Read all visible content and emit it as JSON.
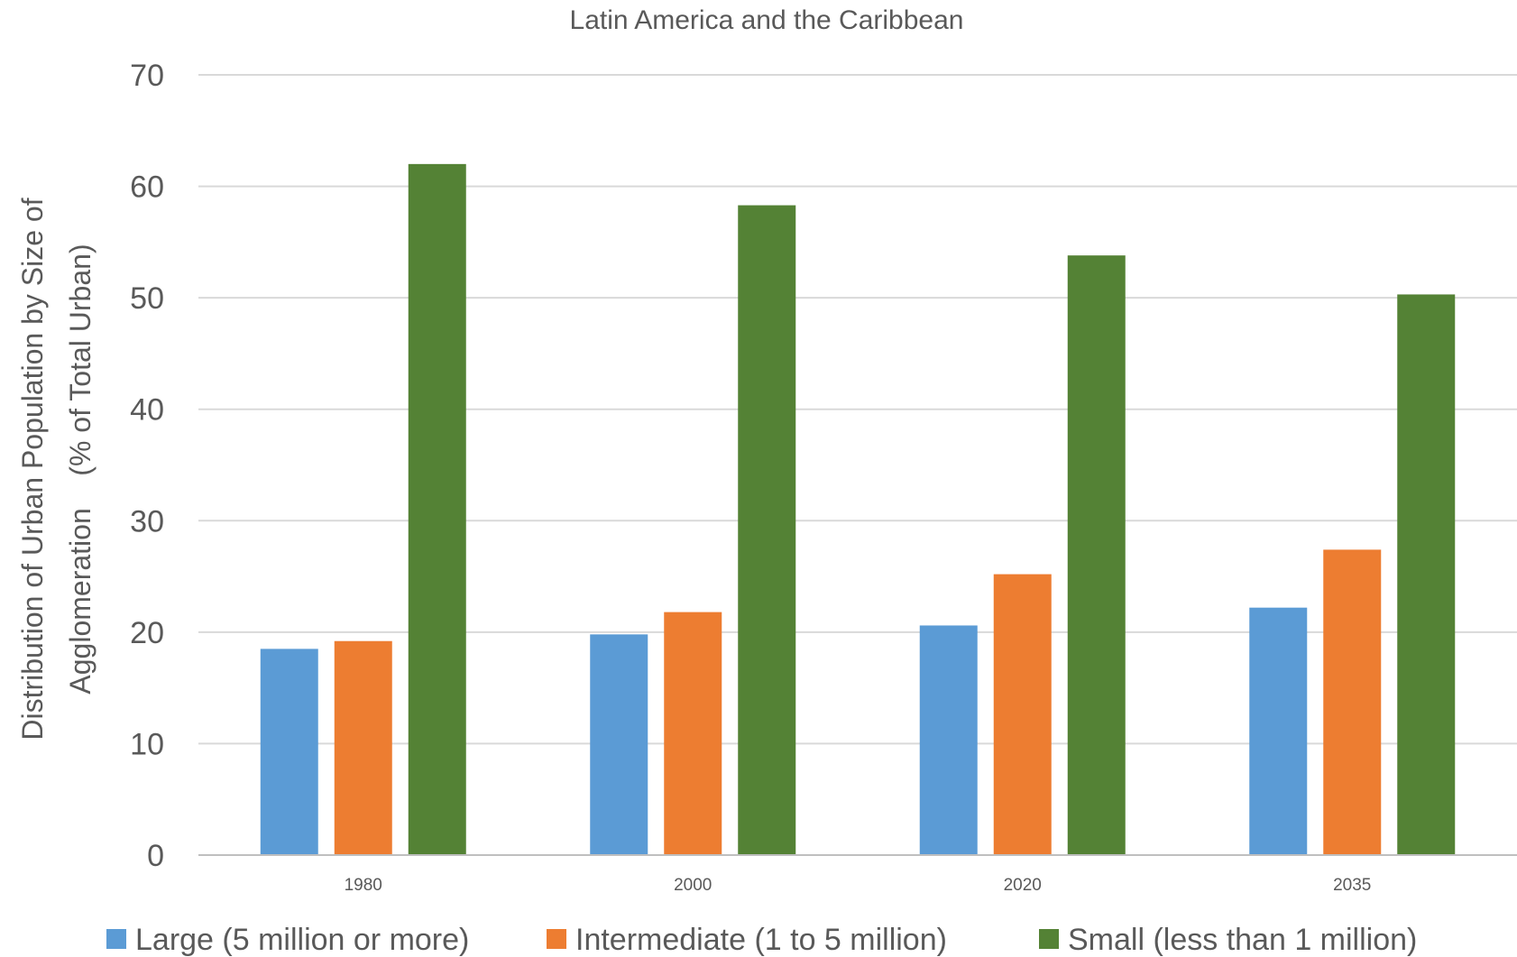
{
  "chart_data": {
    "type": "bar",
    "title": "Latin America and the Caribbean",
    "ylabel_lines": [
      "Distribution of Urban Population by Size of",
      "Agglomeration    (% of Total Urban)"
    ],
    "xlabel": "",
    "categories": [
      "1980",
      "2000",
      "2020",
      "2035"
    ],
    "ylim": [
      0,
      70
    ],
    "yticks": [
      0,
      10,
      20,
      30,
      40,
      50,
      60,
      70
    ],
    "grid": true,
    "legend_position": "bottom",
    "series": [
      {
        "name": "Large (5 million or more)",
        "color": "#5b9bd5",
        "values": [
          18.5,
          19.8,
          20.6,
          22.2
        ]
      },
      {
        "name": "Intermediate (1 to 5 million)",
        "color": "#ed7d31",
        "values": [
          19.2,
          21.8,
          25.2,
          27.4
        ]
      },
      {
        "name": "Small (less than 1 million)",
        "color": "#548235",
        "values": [
          62.0,
          58.3,
          53.8,
          50.3
        ]
      }
    ]
  }
}
